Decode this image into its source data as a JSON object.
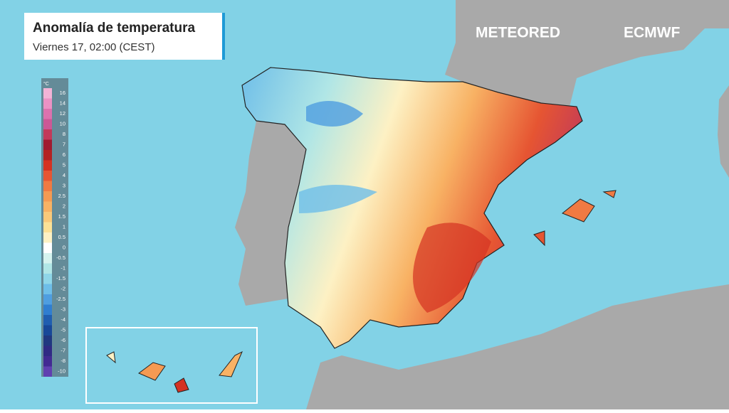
{
  "header": {
    "title": "Anomalía de temperatura",
    "subtitle": "Viernes 17, 02:00 (CEST)"
  },
  "logos": {
    "meteored": "METEORED",
    "ecmwf": "ECMWF"
  },
  "legend": {
    "unit": "°C",
    "stops": [
      {
        "label": "16",
        "color": "#f2b3d6"
      },
      {
        "label": "14",
        "color": "#ea92c4"
      },
      {
        "label": "12",
        "color": "#dc72ae"
      },
      {
        "label": "10",
        "color": "#cc5896"
      },
      {
        "label": "8",
        "color": "#c23a5a"
      },
      {
        "label": "7",
        "color": "#a01a30"
      },
      {
        "label": "6",
        "color": "#b42222"
      },
      {
        "label": "5",
        "color": "#d43222"
      },
      {
        "label": "4",
        "color": "#e65532"
      },
      {
        "label": "3",
        "color": "#f07a42"
      },
      {
        "label": "2.5",
        "color": "#f59a52"
      },
      {
        "label": "2",
        "color": "#f8b264"
      },
      {
        "label": "1.5",
        "color": "#fac97a"
      },
      {
        "label": "1",
        "color": "#fce196"
      },
      {
        "label": "0.5",
        "color": "#fdf1c4"
      },
      {
        "label": "0",
        "color": "#ffffff"
      },
      {
        "label": "-0.5",
        "color": "#d6f3ef"
      },
      {
        "label": "-1",
        "color": "#b0e6e6"
      },
      {
        "label": "-1.5",
        "color": "#8fd6e8"
      },
      {
        "label": "-2",
        "color": "#6ebee8"
      },
      {
        "label": "-2.5",
        "color": "#4f9ee0"
      },
      {
        "label": "-3",
        "color": "#307ed0"
      },
      {
        "label": "-4",
        "color": "#205eb0"
      },
      {
        "label": "-5",
        "color": "#184898"
      },
      {
        "label": "-6",
        "color": "#203880"
      },
      {
        "label": "-7",
        "color": "#302a84"
      },
      {
        "label": "-8",
        "color": "#422a92"
      },
      {
        "label": "-10",
        "color": "#6040b0"
      }
    ]
  }
}
